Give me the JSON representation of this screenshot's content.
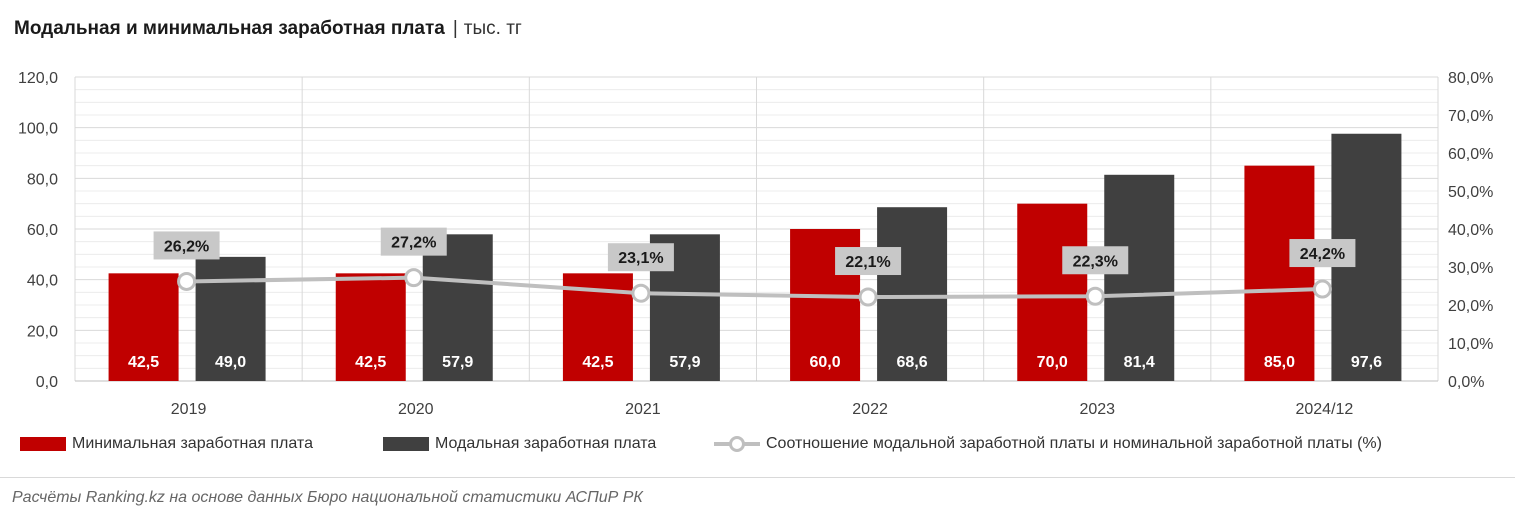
{
  "header": {
    "title": "Модальная и минимальная заработная плата",
    "separator": "|",
    "unit": "тыс. тг"
  },
  "source": "Расчёты Ranking.kz на основе данных Бюро национальной статистики АСПиР РК",
  "colors": {
    "min_wage": "#c00000",
    "modal_wage": "#404040",
    "ratio_line": "#bfbfbf",
    "label_box": "#c8c8c8"
  },
  "chart_data": {
    "type": "bar",
    "title": "Модальная и минимальная заработная плата | тыс. тг",
    "categories": [
      "2019",
      "2020",
      "2021",
      "2022",
      "2023",
      "2024/12"
    ],
    "series": [
      {
        "name": "Минимальная заработная плата",
        "type": "bar",
        "axis": "left",
        "values": [
          42.5,
          42.5,
          42.5,
          60.0,
          70.0,
          85.0
        ],
        "labels": [
          "42,5",
          "42,5",
          "42,5",
          "60,0",
          "70,0",
          "85,0"
        ]
      },
      {
        "name": "Модальная заработная плата",
        "type": "bar",
        "axis": "left",
        "values": [
          49.0,
          57.9,
          57.9,
          68.6,
          81.4,
          97.6
        ],
        "labels": [
          "49,0",
          "57,9",
          "57,9",
          "68,6",
          "81,4",
          "97,6"
        ]
      },
      {
        "name": "Соотношение модальной заработной платы и номинальной заработной платы (%)",
        "type": "line",
        "axis": "right",
        "values": [
          26.2,
          27.2,
          23.1,
          22.1,
          22.3,
          24.2
        ],
        "labels": [
          "26,2%",
          "27,2%",
          "23,1%",
          "22,1%",
          "22,3%",
          "24,2%"
        ]
      }
    ],
    "y_left": {
      "min": 0,
      "max": 120,
      "ticks": [
        "0,0",
        "20,0",
        "40,0",
        "60,0",
        "80,0",
        "100,0",
        "120,0"
      ]
    },
    "y_right": {
      "min": 0,
      "max": 80,
      "ticks": [
        "0,0%",
        "10,0%",
        "20,0%",
        "30,0%",
        "40,0%",
        "50,0%",
        "60,0%",
        "70,0%",
        "80,0%"
      ]
    },
    "grid": true,
    "legend": "bottom"
  }
}
